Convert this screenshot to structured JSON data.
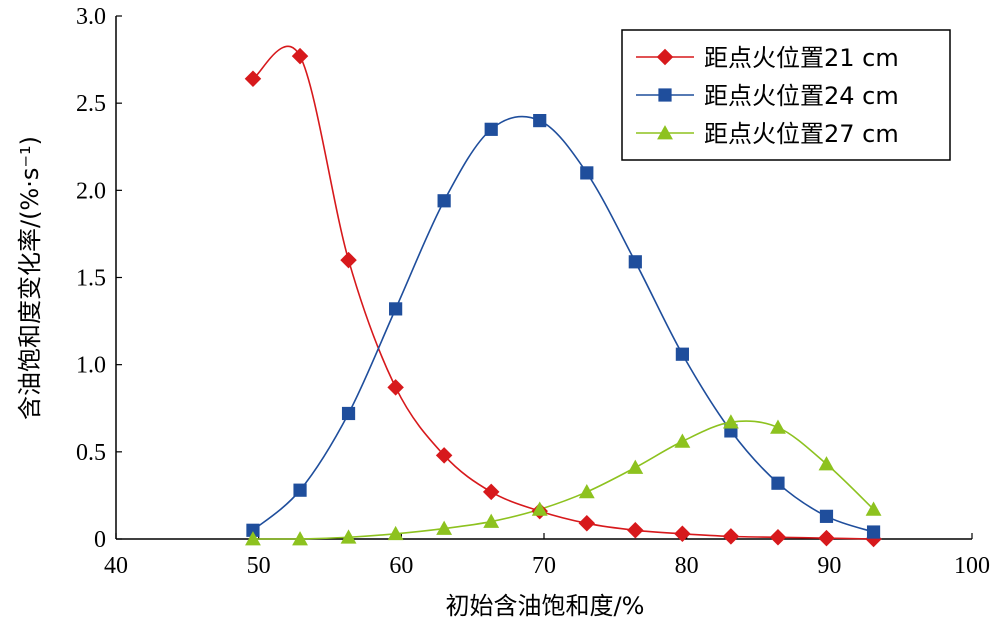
{
  "chart_data": {
    "type": "line",
    "xlabel": "初始含油饱和度/%",
    "ylabel": "含油饱和度变化率/(%·s⁻¹)",
    "xlim": [
      40,
      100
    ],
    "ylim": [
      0,
      3.0
    ],
    "xticks": [
      40,
      50,
      60,
      70,
      80,
      90,
      100
    ],
    "yticks": [
      "0",
      "0.5",
      "1.0",
      "1.5",
      "2.0",
      "2.5",
      "3.0"
    ],
    "grid": false,
    "legend_position": "top-right",
    "series": [
      {
        "name": "距点火位置21 cm",
        "color": "#d7191c",
        "marker": "diamond",
        "x": [
          49.6,
          52.9,
          56.3,
          59.6,
          63.0,
          66.3,
          69.7,
          73.0,
          76.4,
          79.7,
          83.1,
          86.4,
          89.8,
          93.1
        ],
        "y": [
          2.64,
          2.77,
          1.6,
          0.87,
          0.48,
          0.27,
          0.16,
          0.09,
          0.05,
          0.03,
          0.015,
          0.01,
          0.005,
          0.0
        ]
      },
      {
        "name": "距点火位置24 cm",
        "color": "#1f4e9c",
        "marker": "square",
        "x": [
          49.6,
          52.9,
          56.3,
          59.6,
          63.0,
          66.3,
          69.7,
          73.0,
          76.4,
          79.7,
          83.1,
          86.4,
          89.8,
          93.1
        ],
        "y": [
          0.05,
          0.28,
          0.72,
          1.32,
          1.94,
          2.35,
          2.4,
          2.1,
          1.59,
          1.06,
          0.62,
          0.32,
          0.13,
          0.04
        ]
      },
      {
        "name": "距点火位置27 cm",
        "color": "#8dc21f",
        "marker": "triangle",
        "x": [
          49.6,
          52.9,
          56.3,
          59.6,
          63.0,
          66.3,
          69.7,
          73.0,
          76.4,
          79.7,
          83.1,
          86.4,
          89.8,
          93.1
        ],
        "y": [
          0.0,
          0.0,
          0.01,
          0.03,
          0.06,
          0.1,
          0.17,
          0.27,
          0.41,
          0.56,
          0.67,
          0.64,
          0.43,
          0.17
        ]
      }
    ]
  }
}
